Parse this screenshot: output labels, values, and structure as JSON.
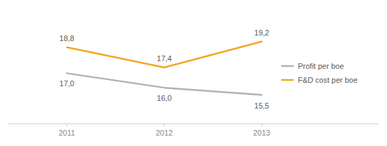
{
  "chart_data": {
    "type": "line",
    "x": [
      2011,
      2012,
      2013
    ],
    "xlim": [
      2010.4,
      2014.2
    ],
    "xticks": [
      2011,
      2012,
      2013
    ],
    "ylim": [
      13.5,
      21.5
    ],
    "tick_labels": "x",
    "grid": false,
    "legend": "right",
    "data_labels": true,
    "series": [
      {
        "name": "Profit per boe",
        "color": "#b2b2b2",
        "values": [
          17.0,
          16.0,
          15.5
        ],
        "value_labels": [
          "17,0",
          "16,0",
          "15,5"
        ]
      },
      {
        "name": "F&D cost per boe",
        "color": "#f5a623",
        "values": [
          18.8,
          17.4,
          19.2
        ],
        "value_labels": [
          "18,8",
          "17,4",
          "19,2"
        ]
      }
    ]
  }
}
